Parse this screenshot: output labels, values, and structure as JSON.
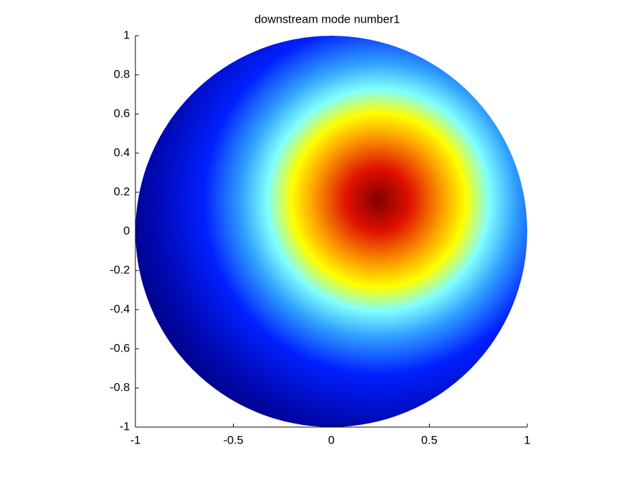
{
  "chart_data": {
    "type": "contourf",
    "title": "downstream mode number1",
    "peak": [
      0.24,
      0.16
    ],
    "colormap": "jet",
    "xlim": [
      -1,
      1
    ],
    "ylim": [
      -1,
      1
    ],
    "xticks": [
      -1,
      -0.5,
      0,
      0.5,
      1
    ],
    "yticks": [
      -1,
      -0.8,
      -0.6,
      -0.4,
      -0.2,
      0,
      0.2,
      0.4,
      0.6,
      0.8,
      1
    ]
  }
}
